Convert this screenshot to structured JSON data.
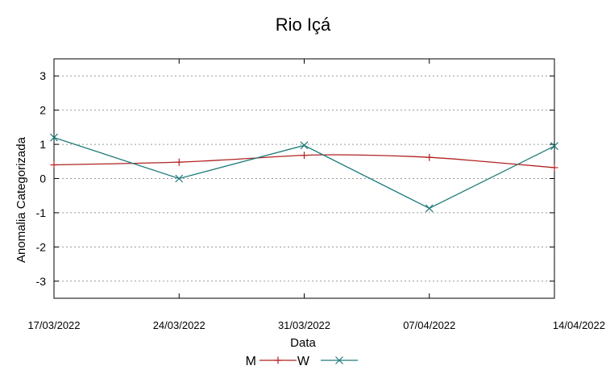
{
  "chart_data": {
    "type": "line",
    "title": "Rio Içá",
    "xlabel": "Data",
    "ylabel": "Anomalia Categorizada",
    "x_tick_labels": [
      "17/03/2022",
      "24/03/2022",
      "31/03/2022",
      "07/04/2022",
      "14/04/2022"
    ],
    "y_ticks": [
      3,
      2,
      1,
      0,
      -1,
      -2,
      -3
    ],
    "y_tick_labels": [
      "3",
      "2",
      "1",
      "0",
      "-1",
      "-2",
      "-3"
    ],
    "ylim": [
      -3.5,
      3.5
    ],
    "x_days": [
      0,
      7,
      14,
      21,
      28
    ],
    "grid": "horizontal dotted",
    "legend_position": "bottom-center",
    "series": [
      {
        "name": "M",
        "color": "#b22222",
        "marker": "plus",
        "smooth": true,
        "marker_values": [
          0.4,
          0.48,
          0.68,
          0.62,
          0.32
        ],
        "curve_points": [
          [
            0,
            0.4
          ],
          [
            3,
            0.43
          ],
          [
            7,
            0.48
          ],
          [
            10,
            0.56
          ],
          [
            14,
            0.68
          ],
          [
            17,
            0.69
          ],
          [
            21,
            0.62
          ],
          [
            24,
            0.5
          ],
          [
            28,
            0.32
          ]
        ]
      },
      {
        "name": "W",
        "color": "#1f7a7a",
        "marker": "cross",
        "smooth": false,
        "marker_values": [
          1.2,
          0.0,
          0.97,
          -0.87,
          0.95
        ],
        "curve_points": [
          [
            0,
            1.2
          ],
          [
            7,
            0.0
          ],
          [
            14,
            0.97
          ],
          [
            21,
            -0.87
          ],
          [
            28,
            0.95
          ]
        ]
      }
    ]
  }
}
